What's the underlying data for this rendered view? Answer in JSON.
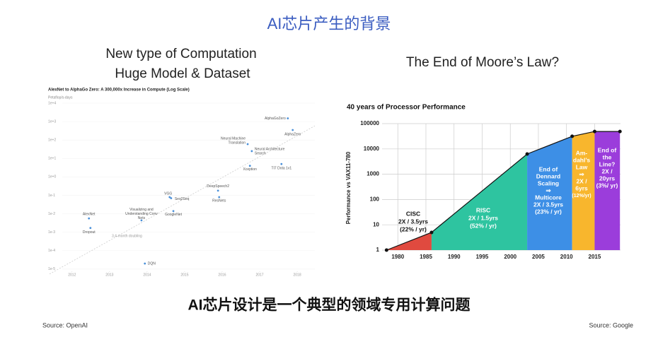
{
  "slide": {
    "title": "AI芯片产生的背景",
    "left_heading": [
      "New type of Computation",
      "Huge Model & Dataset"
    ],
    "right_heading": "The End of Moore’s Law?",
    "bottom_text": "AI芯片设计是一个典型的领域专用计算问题",
    "sources": [
      "Source: OpenAI",
      "Source: Google"
    ]
  },
  "chart_data": [
    {
      "type": "scatter",
      "title": "AlexNet to AlphaGo Zero: A 300,000x Increase in Compute (Log Scale)",
      "ylabel": "Petaflop/s-days",
      "log_y": true,
      "color": "#4a90d9",
      "grid": true,
      "labels": [
        [
          "AlexNet"
        ],
        [
          "Dropout"
        ],
        [
          "DQN"
        ],
        [
          "Visualizing and",
          "Understanding Conv",
          "Nets"
        ],
        [
          "GoogleNet"
        ],
        [
          "VGG"
        ],
        [
          "Seq2Seq"
        ],
        [
          "DeepSpeech2"
        ],
        [
          "ResNets"
        ],
        [
          "Neural Machine",
          "Translation"
        ],
        [
          "Neural Architecture",
          "Search"
        ],
        [
          "Xception"
        ],
        [
          "TI7 Dota 1v1"
        ],
        [
          "AlphaGoZero"
        ],
        [
          "AlphaZero"
        ]
      ],
      "x": [
        2012.45,
        2012.49,
        2013.94,
        2013.85,
        2014.7,
        2014.6,
        2014.64,
        2015.89,
        2015.92,
        2016.68,
        2016.79,
        2016.74,
        2017.58,
        2017.75,
        2017.88
      ],
      "values": [
        0.0056,
        0.0017,
        2e-05,
        0.0044,
        0.014,
        0.08,
        0.07,
        0.18,
        0.08,
        60,
        25,
        4,
        5,
        1500,
        350
      ],
      "trend": {
        "x": [
          2011.4,
          2018.47
        ],
        "values": [
          5.4e-06,
          590
        ]
      },
      "annotation": "3.4-month doubling",
      "xlim": [
        2011.4,
        2018.47
      ],
      "xticks": [
        2012,
        2013,
        2014,
        2015,
        2016,
        2017,
        2018
      ],
      "ylim": [
        4.9e-06,
        17000
      ],
      "yticks": [
        {
          "value": 10000,
          "label": "1e+4"
        },
        {
          "value": 1000,
          "label": "1e+3"
        },
        {
          "value": 100,
          "label": "1e+2"
        },
        {
          "value": 10,
          "label": "1e+1"
        },
        {
          "value": 1,
          "label": "1e+0"
        },
        {
          "value": 0.1,
          "label": "1e-1"
        },
        {
          "value": 0.01,
          "label": "1e-2"
        },
        {
          "value": 0.001,
          "label": "1e-3"
        },
        {
          "value": 0.0001,
          "label": "1e-4"
        },
        {
          "value": 1e-05,
          "label": "1e-5"
        }
      ]
    },
    {
      "type": "area",
      "title": "40 years of Processor Performance",
      "ylabel": "Performance vs VAX11-780",
      "log_y": true,
      "grid": true,
      "x": [
        1978,
        1986,
        2003,
        2011,
        2015,
        2019.5
      ],
      "values": [
        1,
        5,
        6300,
        31600,
        49000,
        49000
      ],
      "segments": [
        {
          "color": "#e04a3f",
          "label": [
            "CISC",
            "2X / 3.5yrs",
            "(22% / yr)"
          ]
        },
        {
          "color": "#2ec4a0",
          "label": [
            "RISC",
            "2X / 1.5yrs",
            "(52% / yr)"
          ]
        },
        {
          "color": "#3d8fe6",
          "label": [
            "End of",
            "Dennard",
            "Scaling",
            "⇒",
            "Multicore",
            "2X / 3.5yrs",
            "(23% / yr)"
          ]
        },
        {
          "color": "#f8b62d",
          "label": [
            "Am-",
            "dahl’s",
            "Law",
            "⇒",
            "2X /",
            "6yrs",
            "(12%/yr)"
          ]
        },
        {
          "color": "#9b3ddb",
          "label": [
            "End of",
            "the",
            "Line?",
            "2X /",
            "20yrs",
            "(3%/ yr)"
          ]
        }
      ],
      "xlim": [
        1977.2,
        2019.6
      ],
      "xticks": [
        1980,
        1985,
        1990,
        1995,
        2000,
        2005,
        2010,
        2015
      ],
      "ylim": [
        1,
        100000
      ],
      "yticks": [
        1,
        10,
        100,
        1000,
        10000,
        100000
      ]
    }
  ]
}
